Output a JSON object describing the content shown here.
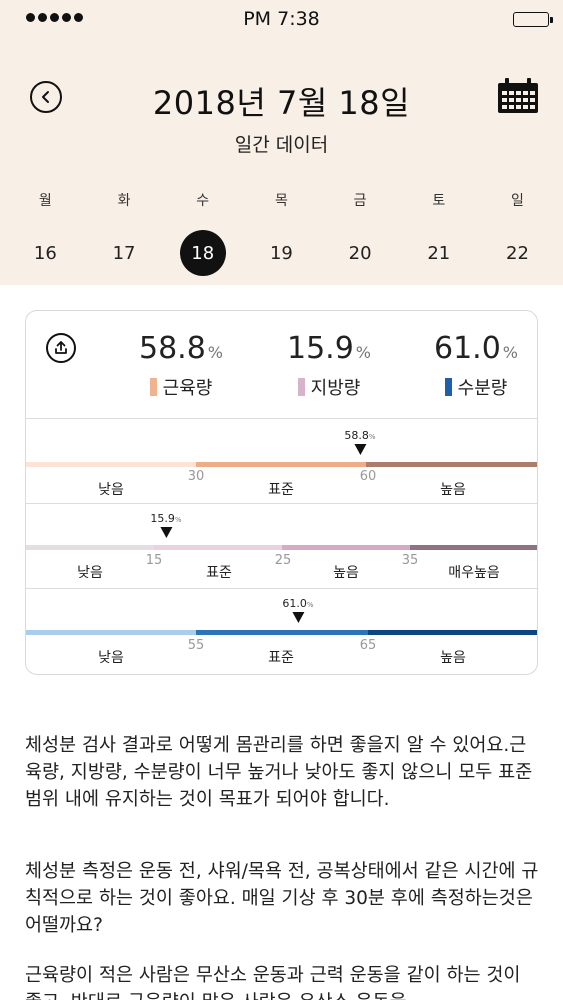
{
  "status_bar": {
    "time": "PM 7:38"
  },
  "header": {
    "date": "2018년 7월 18일",
    "subtitle": "일간 데이터"
  },
  "week": [
    {
      "dow": "월",
      "date": "16"
    },
    {
      "dow": "화",
      "date": "17"
    },
    {
      "dow": "수",
      "date": "18",
      "selected": true
    },
    {
      "dow": "목",
      "date": "19"
    },
    {
      "dow": "금",
      "date": "20"
    },
    {
      "dow": "토",
      "date": "21"
    },
    {
      "dow": "일",
      "date": "22"
    }
  ],
  "summary": {
    "metrics": [
      {
        "value": "58.8",
        "unit": "%",
        "label": "근육량",
        "color": "#f0b38f"
      },
      {
        "value": "15.9",
        "unit": "%",
        "label": "지방량",
        "color": "#d8b4cc"
      },
      {
        "value": "61.0",
        "unit": "%",
        "label": "수분량",
        "color": "#1f5ea8"
      }
    ]
  },
  "gauges": [
    {
      "marker": "58.8",
      "unit": "%",
      "ticks": [
        "30",
        "60"
      ],
      "zones": [
        "낮음",
        "표준",
        "높음"
      ],
      "colors": [
        "#fbe3d6",
        "#eeac88",
        "#ad7d6b"
      ]
    },
    {
      "marker": "15.9",
      "unit": "%",
      "ticks": [
        "15",
        "25",
        "35"
      ],
      "zones": [
        "낮음",
        "표준",
        "높음",
        "매우높음"
      ],
      "colors": [
        "#e6dde3",
        "#ead0e0",
        "#d4aac6",
        "#8f7284"
      ]
    },
    {
      "marker": "61.0",
      "unit": "%",
      "ticks": [
        "55",
        "65"
      ],
      "zones": [
        "낮음",
        "표준",
        "높음"
      ],
      "colors": [
        "#aacdeb",
        "#2d73b9",
        "#0d4680"
      ]
    }
  ],
  "body": {
    "p1": "체성분 검사 결과로 어떻게 몸관리를 하면 좋을지 알 수 있어요.근육량, 지방량, 수분량이 너무 높거나 낮아도 좋지 않으니 모두 표준범위 내에 유지하는 것이 목표가 되어야 합니다.",
    "p2": "체성분 측정은 운동 전, 샤워/목욕 전, 공복상태에서 같은 시간에 규칙적으로 하는 것이 좋아요. 매일 기상 후 30분 후에 측정하는것은 어떨까요?",
    "p3": "근육량이 적은 사람은 무산소 운동과 근력 운동을 같이 하는 것이 좋고, 반대로 근육량이 많은 사람은 유산소 운동을"
  },
  "icons": {
    "back": "chevron-left-icon",
    "calendar": "calendar-icon",
    "share": "share-icon"
  }
}
